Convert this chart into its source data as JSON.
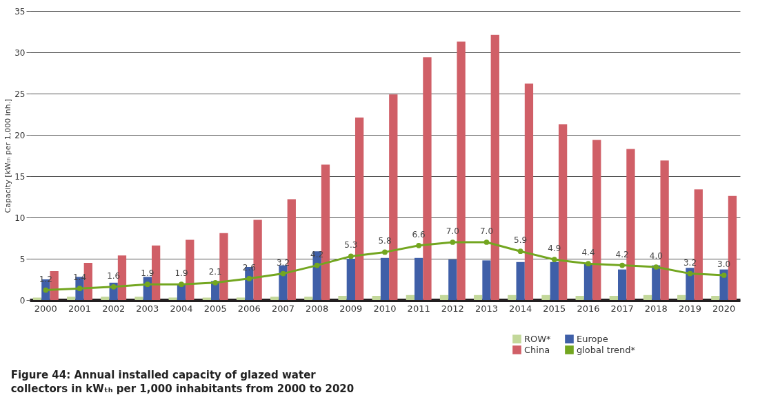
{
  "chart_data": {
    "type": "bar",
    "title": "Figure 44: Annual installed capacity of glazed water collectors in kWₜₕ per 1,000 inhabitants from 2000 to 2020",
    "ylabel": "Capacity [kWₜₕ per 1,000 inh.]",
    "categories": [
      "2000",
      "2001",
      "2002",
      "2003",
      "2004",
      "2005",
      "2006",
      "2007",
      "2008",
      "2009",
      "2010",
      "2011",
      "2012",
      "2013",
      "2014",
      "2015",
      "2016",
      "2017",
      "2018",
      "2019",
      "2020"
    ],
    "series": [
      {
        "name": "ROW*",
        "color": "#c3d89a",
        "values": [
          0.3,
          0.4,
          0.4,
          0.4,
          0.3,
          0.3,
          0.3,
          0.4,
          0.4,
          0.5,
          0.5,
          0.6,
          0.6,
          0.6,
          0.6,
          0.6,
          0.5,
          0.5,
          0.6,
          0.6,
          0.5
        ]
      },
      {
        "name": "Europe",
        "color": "#3f5fa8",
        "values": [
          2.5,
          2.8,
          2.1,
          2.8,
          2.0,
          2.3,
          4.0,
          4.2,
          5.9,
          5.0,
          5.1,
          5.1,
          4.9,
          4.8,
          4.6,
          4.6,
          4.4,
          3.7,
          4.2,
          3.9,
          3.7
        ]
      },
      {
        "name": "China",
        "color": "#d05f67",
        "values": [
          3.5,
          4.5,
          5.4,
          6.6,
          7.3,
          8.1,
          9.7,
          12.2,
          16.4,
          22.1,
          24.9,
          29.4,
          31.3,
          32.1,
          26.2,
          21.3,
          19.4,
          18.3,
          16.9,
          13.4,
          12.6
        ]
      },
      {
        "name": "global trend*",
        "type": "line",
        "color": "#73a620",
        "marker": "circle",
        "values": [
          1.2,
          1.4,
          1.6,
          1.9,
          1.9,
          2.1,
          2.6,
          3.2,
          4.2,
          5.3,
          5.8,
          6.6,
          7.0,
          7.0,
          5.9,
          4.9,
          4.4,
          4.2,
          4.0,
          3.2,
          3.0
        ],
        "value_labels": [
          "1.2",
          "1.4",
          "1.6",
          "1.9",
          "1.9",
          "2.1",
          "2.6",
          "3.2",
          "4.2",
          "5.3",
          "5.8",
          "6.6",
          "7.0",
          "7.0",
          "5.9",
          "4.9",
          "4.4",
          "4.2",
          "4.0",
          "3.2",
          "3.0"
        ]
      }
    ],
    "ylim": [
      0,
      35
    ],
    "yticks": [
      0,
      5,
      10,
      15,
      20,
      25,
      30,
      35
    ],
    "grid": "y",
    "legend": "bottom right"
  }
}
